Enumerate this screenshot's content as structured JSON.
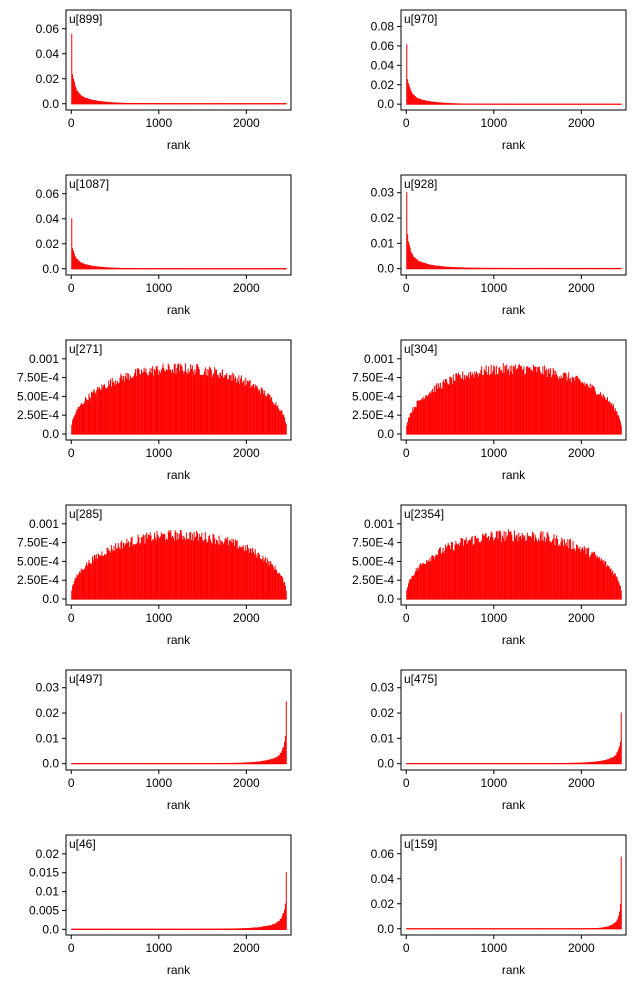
{
  "figure": {
    "background": "#ffffff",
    "bar_color": "#ff0000"
  },
  "chart_data": [
    {
      "type": "bar",
      "title": "u[899]",
      "xlabel": "rank",
      "ylabel": "",
      "xlim": [
        -60,
        2510
      ],
      "xticks": [
        0,
        1000,
        2000
      ],
      "xtick_labels": [
        "0",
        "1000",
        "2000"
      ],
      "ylim": [
        -0.005,
        0.075
      ],
      "yticks": [
        0,
        0.02,
        0.04,
        0.06
      ],
      "ytick_labels": [
        "0.0",
        "0.02",
        "0.04",
        "0.06"
      ],
      "profile": {
        "shape": "head",
        "bins": 250,
        "range": [
          0,
          2460
        ],
        "peak": 0.055,
        "decay": 14,
        "floor": 0.0003,
        "noise": 0.05
      }
    },
    {
      "type": "bar",
      "title": "u[970]",
      "xlabel": "rank",
      "ylabel": "",
      "xlim": [
        -60,
        2510
      ],
      "xticks": [
        0,
        1000,
        2000
      ],
      "xtick_labels": [
        "0",
        "1000",
        "2000"
      ],
      "ylim": [
        -0.006,
        0.097
      ],
      "yticks": [
        0,
        0.02,
        0.04,
        0.06,
        0.08
      ],
      "ytick_labels": [
        "0.0",
        "0.02",
        "0.04",
        "0.06",
        "0.08"
      ],
      "profile": {
        "shape": "head",
        "bins": 250,
        "range": [
          0,
          2460
        ],
        "peak": 0.06,
        "decay": 14,
        "floor": 0.0003,
        "noise": 0.05
      }
    },
    {
      "type": "bar",
      "title": "u[1087]",
      "xlabel": "rank",
      "ylabel": "",
      "xlim": [
        -60,
        2510
      ],
      "xticks": [
        0,
        1000,
        2000
      ],
      "xtick_labels": [
        "0",
        "1000",
        "2000"
      ],
      "ylim": [
        -0.005,
        0.075
      ],
      "yticks": [
        0,
        0.02,
        0.04,
        0.06
      ],
      "ytick_labels": [
        "0.0",
        "0.02",
        "0.04",
        "0.06"
      ],
      "profile": {
        "shape": "head",
        "bins": 250,
        "range": [
          0,
          2460
        ],
        "peak": 0.04,
        "decay": 14,
        "floor": 0.0003,
        "noise": 0.05
      }
    },
    {
      "type": "bar",
      "title": "u[928]",
      "xlabel": "rank",
      "ylabel": "",
      "xlim": [
        -60,
        2510
      ],
      "xticks": [
        0,
        1000,
        2000
      ],
      "xtick_labels": [
        "0",
        "1000",
        "2000"
      ],
      "ylim": [
        -0.0025,
        0.037
      ],
      "yticks": [
        0,
        0.01,
        0.02,
        0.03
      ],
      "ytick_labels": [
        "0.0",
        "0.01",
        "0.02",
        "0.03"
      ],
      "profile": {
        "shape": "head",
        "bins": 250,
        "range": [
          0,
          2460
        ],
        "peak": 0.03,
        "decay": 14,
        "floor": 0.0003,
        "noise": 0.05
      }
    },
    {
      "type": "bar",
      "title": "u[271]",
      "xlabel": "rank",
      "ylabel": "",
      "xlim": [
        -60,
        2510
      ],
      "xticks": [
        0,
        1000,
        2000
      ],
      "xtick_labels": [
        "0",
        "1000",
        "2000"
      ],
      "ylim": [
        -8e-05,
        0.00125
      ],
      "yticks": [
        0,
        0.00025,
        0.0005,
        0.00075,
        0.001
      ],
      "ytick_labels": [
        "0.0",
        "2.50E-4",
        "5.00E-4",
        "7.50E-4",
        "0.001"
      ],
      "profile": {
        "shape": "dome",
        "bins": 250,
        "range": [
          0,
          2460
        ],
        "peak": 0.00082,
        "noise": 0.09
      }
    },
    {
      "type": "bar",
      "title": "u[304]",
      "xlabel": "rank",
      "ylabel": "",
      "xlim": [
        -60,
        2510
      ],
      "xticks": [
        0,
        1000,
        2000
      ],
      "xtick_labels": [
        "0",
        "1000",
        "2000"
      ],
      "ylim": [
        -8e-05,
        0.00125
      ],
      "yticks": [
        0,
        0.00025,
        0.0005,
        0.00075,
        0.001
      ],
      "ytick_labels": [
        "0.0",
        "2.50E-4",
        "5.00E-4",
        "7.50E-4",
        "0.001"
      ],
      "profile": {
        "shape": "dome",
        "bins": 250,
        "range": [
          0,
          2460
        ],
        "peak": 0.00082,
        "noise": 0.09
      }
    },
    {
      "type": "bar",
      "title": "u[285]",
      "xlabel": "rank",
      "ylabel": "",
      "xlim": [
        -60,
        2510
      ],
      "xticks": [
        0,
        1000,
        2000
      ],
      "xtick_labels": [
        "0",
        "1000",
        "2000"
      ],
      "ylim": [
        -8e-05,
        0.00125
      ],
      "yticks": [
        0,
        0.00025,
        0.0005,
        0.00075,
        0.001
      ],
      "ytick_labels": [
        "0.0",
        "2.50E-4",
        "5.00E-4",
        "7.50E-4",
        "0.001"
      ],
      "profile": {
        "shape": "dome",
        "bins": 250,
        "range": [
          0,
          2460
        ],
        "peak": 0.0008,
        "noise": 0.09
      }
    },
    {
      "type": "bar",
      "title": "u[2354]",
      "xlabel": "rank",
      "ylabel": "",
      "xlim": [
        -60,
        2510
      ],
      "xticks": [
        0,
        1000,
        2000
      ],
      "xtick_labels": [
        "0",
        "1000",
        "2000"
      ],
      "ylim": [
        -8e-05,
        0.00125
      ],
      "yticks": [
        0,
        0.00025,
        0.0005,
        0.00075,
        0.001
      ],
      "ytick_labels": [
        "0.0",
        "2.50E-4",
        "5.00E-4",
        "7.50E-4",
        "0.001"
      ],
      "profile": {
        "shape": "dome",
        "bins": 250,
        "range": [
          0,
          2460
        ],
        "peak": 0.0008,
        "noise": 0.1
      }
    },
    {
      "type": "bar",
      "title": "u[497]",
      "xlabel": "rank",
      "ylabel": "",
      "xlim": [
        -60,
        2510
      ],
      "xticks": [
        0,
        1000,
        2000
      ],
      "xtick_labels": [
        "0",
        "1000",
        "2000"
      ],
      "ylim": [
        -0.0025,
        0.037
      ],
      "yticks": [
        0,
        0.01,
        0.02,
        0.03
      ],
      "ytick_labels": [
        "0.0",
        "0.01",
        "0.02",
        "0.03"
      ],
      "profile": {
        "shape": "tail",
        "bins": 250,
        "range": [
          0,
          2460
        ],
        "peak": 0.025,
        "decay": 12,
        "floor": 0.0002,
        "noise": 0.08
      }
    },
    {
      "type": "bar",
      "title": "u[475]",
      "xlabel": "rank",
      "ylabel": "",
      "xlim": [
        -60,
        2510
      ],
      "xticks": [
        0,
        1000,
        2000
      ],
      "xtick_labels": [
        "0",
        "1000",
        "2000"
      ],
      "ylim": [
        -0.0025,
        0.037
      ],
      "yticks": [
        0,
        0.01,
        0.02,
        0.03
      ],
      "ytick_labels": [
        "0.0",
        "0.01",
        "0.02",
        "0.03"
      ],
      "profile": {
        "shape": "tail",
        "bins": 250,
        "range": [
          0,
          2460
        ],
        "peak": 0.021,
        "decay": 12,
        "floor": 0.0002,
        "noise": 0.08
      }
    },
    {
      "type": "bar",
      "title": "u[46]",
      "xlabel": "rank",
      "ylabel": "",
      "xlim": [
        -60,
        2510
      ],
      "xticks": [
        0,
        1000,
        2000
      ],
      "xtick_labels": [
        "0",
        "1000",
        "2000"
      ],
      "ylim": [
        -0.0015,
        0.025
      ],
      "yticks": [
        0,
        0.005,
        0.01,
        0.015,
        0.02
      ],
      "ytick_labels": [
        "0.0",
        "0.005",
        "0.01",
        "0.015",
        "0.02"
      ],
      "profile": {
        "shape": "tail",
        "bins": 250,
        "range": [
          0,
          2460
        ],
        "peak": 0.016,
        "decay": 12,
        "floor": 0.00015,
        "noise": 0.08
      }
    },
    {
      "type": "bar",
      "title": "u[159]",
      "xlabel": "rank",
      "ylabel": "",
      "xlim": [
        -60,
        2510
      ],
      "xticks": [
        0,
        1000,
        2000
      ],
      "xtick_labels": [
        "0",
        "1000",
        "2000"
      ],
      "ylim": [
        -0.005,
        0.075
      ],
      "yticks": [
        0,
        0.02,
        0.04,
        0.06
      ],
      "ytick_labels": [
        "0.0",
        "0.02",
        "0.04",
        "0.06"
      ],
      "profile": {
        "shape": "tail",
        "bins": 250,
        "range": [
          0,
          2460
        ],
        "peak": 0.06,
        "decay": 6,
        "floor": 0.0002,
        "noise": 0.06
      }
    }
  ]
}
